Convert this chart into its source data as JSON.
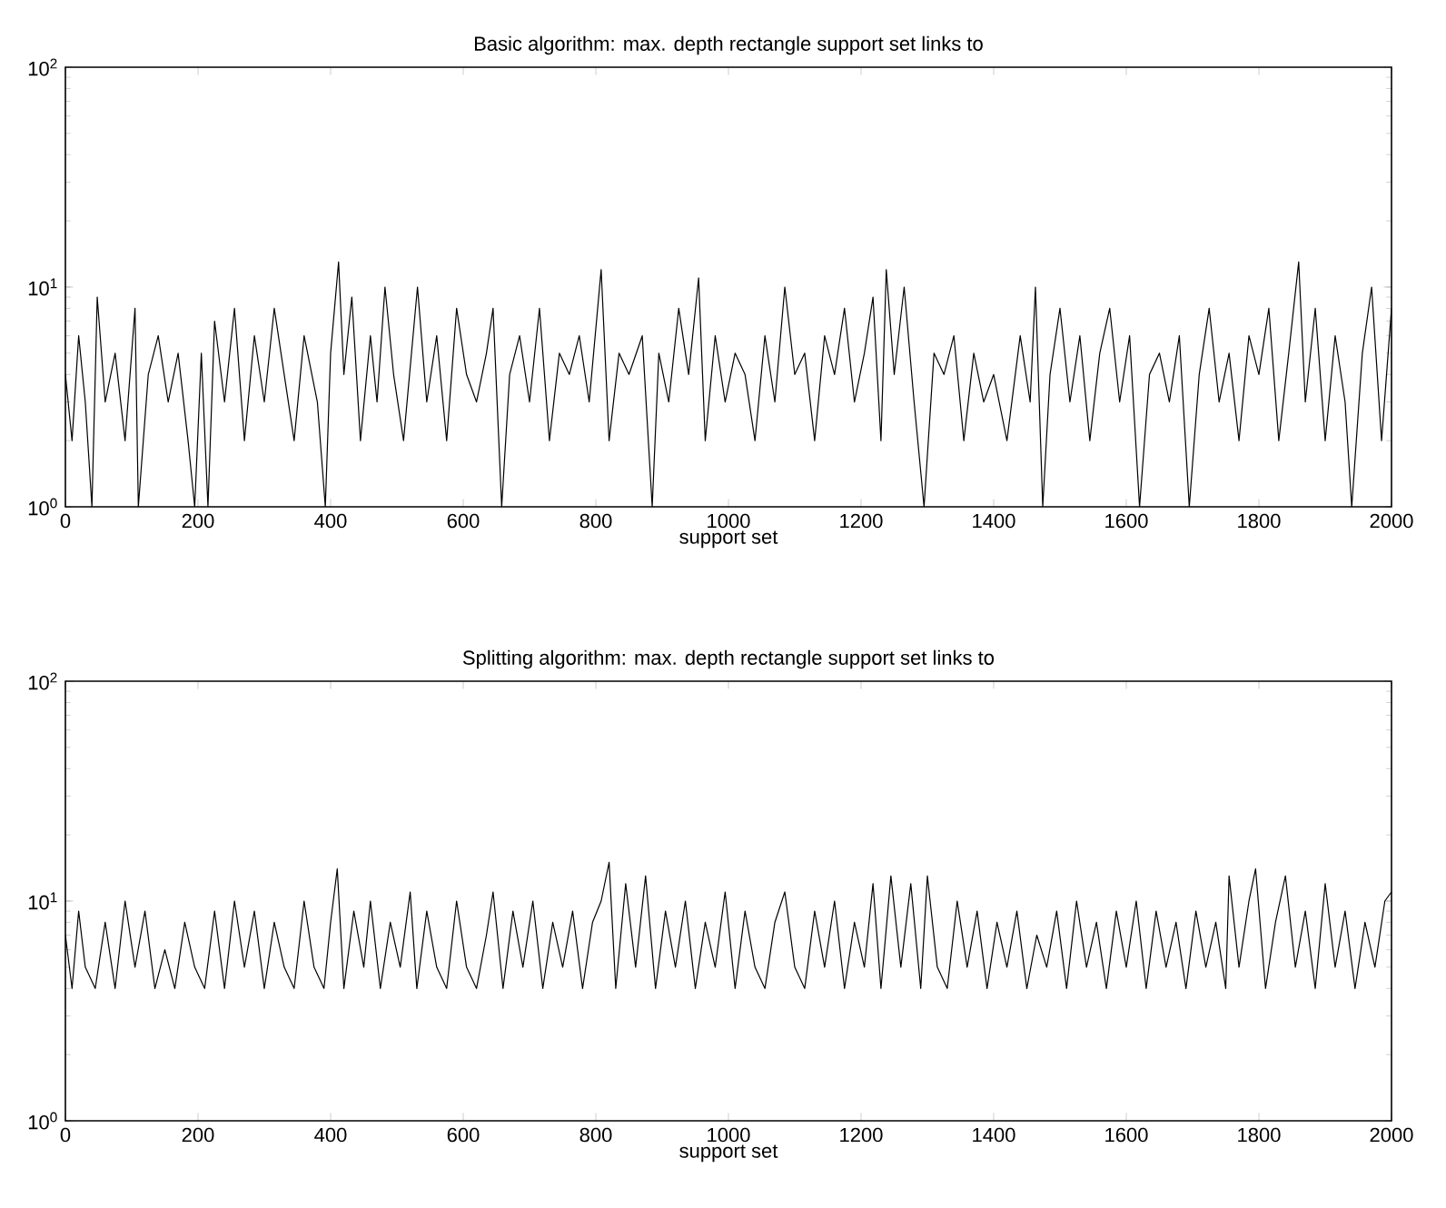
{
  "chart_data": [
    {
      "type": "line",
      "title": "Basic algorithm: max. depth rectangle support set links to",
      "xlabel": "support set",
      "log": "y",
      "xlim": [
        0,
        2000
      ],
      "xticks": [
        0,
        200,
        400,
        600,
        800,
        1000,
        1200,
        1400,
        1600,
        1800,
        2000
      ],
      "ylim": [
        1,
        100
      ],
      "yticks": [
        {
          "value": 1,
          "label": "10$^{0}$"
        },
        {
          "value": 10,
          "label": "10$^{1}$"
        },
        {
          "value": 100,
          "label": "10$^{2}$"
        }
      ],
      "x": [
        0,
        10,
        20,
        30,
        40,
        48,
        60,
        75,
        90,
        105,
        110,
        125,
        140,
        155,
        170,
        185,
        195,
        205,
        215,
        225,
        240,
        255,
        270,
        285,
        300,
        315,
        330,
        345,
        360,
        380,
        392,
        400,
        412,
        420,
        432,
        445,
        460,
        470,
        482,
        495,
        510,
        531,
        545,
        560,
        575,
        590,
        605,
        620,
        635,
        645,
        658,
        670,
        685,
        700,
        715,
        730,
        745,
        760,
        775,
        790,
        808,
        820,
        835,
        850,
        870,
        885,
        895,
        910,
        925,
        940,
        955,
        965,
        980,
        995,
        1010,
        1025,
        1040,
        1055,
        1070,
        1085,
        1100,
        1115,
        1130,
        1145,
        1160,
        1175,
        1190,
        1205,
        1218,
        1230,
        1238,
        1250,
        1265,
        1280,
        1295,
        1310,
        1325,
        1340,
        1355,
        1370,
        1385,
        1400,
        1420,
        1440,
        1455,
        1463,
        1474,
        1485,
        1500,
        1515,
        1530,
        1545,
        1560,
        1575,
        1590,
        1605,
        1620,
        1635,
        1650,
        1665,
        1680,
        1695,
        1710,
        1725,
        1740,
        1755,
        1770,
        1785,
        1800,
        1815,
        1830,
        1845,
        1860,
        1870,
        1885,
        1900,
        1915,
        1930,
        1940,
        1956,
        1970,
        1985,
        2000
      ],
      "values": [
        4,
        2,
        6,
        3,
        1,
        9,
        3,
        5,
        2,
        8,
        1,
        4,
        6,
        3,
        5,
        2,
        1,
        5,
        1,
        7,
        3,
        8,
        2,
        6,
        3,
        8,
        4,
        2,
        6,
        3,
        1,
        5,
        13,
        4,
        9,
        2,
        6,
        3,
        10,
        4,
        2,
        10,
        3,
        6,
        2,
        8,
        4,
        3,
        5,
        8,
        1,
        4,
        6,
        3,
        8,
        2,
        5,
        4,
        6,
        3,
        12,
        2,
        5,
        4,
        6,
        1,
        5,
        3,
        8,
        4,
        11,
        2,
        6,
        3,
        5,
        4,
        2,
        6,
        3,
        10,
        4,
        5,
        2,
        6,
        4,
        8,
        3,
        5,
        9,
        2,
        12,
        4,
        10,
        3,
        1,
        5,
        4,
        6,
        2,
        5,
        3,
        4,
        2,
        6,
        3,
        10,
        1,
        4,
        8,
        3,
        6,
        2,
        5,
        8,
        3,
        6,
        1,
        4,
        5,
        3,
        6,
        1,
        4,
        8,
        3,
        5,
        2,
        6,
        4,
        8,
        2,
        5,
        13,
        3,
        8,
        2,
        6,
        3,
        1,
        5,
        10,
        2,
        8
      ],
      "color": "#000000"
    },
    {
      "type": "line",
      "title": "Splitting algorithm: max. depth rectangle support set links to",
      "xlabel": "support set",
      "log": "y",
      "xlim": [
        0,
        2000
      ],
      "xticks": [
        0,
        200,
        400,
        600,
        800,
        1000,
        1200,
        1400,
        1600,
        1800,
        2000
      ],
      "ylim": [
        1,
        100
      ],
      "yticks": [
        {
          "value": 1,
          "label": "10$^{0}$"
        },
        {
          "value": 10,
          "label": "10$^{1}$"
        },
        {
          "value": 100,
          "label": "10$^{2}$"
        }
      ],
      "x": [
        0,
        10,
        20,
        30,
        45,
        60,
        75,
        90,
        105,
        120,
        135,
        150,
        165,
        180,
        195,
        210,
        225,
        240,
        255,
        270,
        285,
        300,
        315,
        330,
        345,
        360,
        375,
        390,
        400,
        410,
        420,
        435,
        450,
        460,
        475,
        490,
        505,
        520,
        530,
        545,
        560,
        575,
        590,
        605,
        620,
        635,
        645,
        660,
        675,
        690,
        705,
        720,
        735,
        750,
        765,
        780,
        795,
        808,
        820,
        830,
        845,
        860,
        875,
        890,
        905,
        920,
        935,
        950,
        965,
        980,
        995,
        1010,
        1025,
        1040,
        1055,
        1070,
        1085,
        1100,
        1115,
        1130,
        1145,
        1160,
        1175,
        1190,
        1205,
        1218,
        1230,
        1245,
        1260,
        1275,
        1290,
        1300,
        1315,
        1330,
        1345,
        1360,
        1375,
        1390,
        1405,
        1420,
        1435,
        1450,
        1465,
        1480,
        1495,
        1510,
        1525,
        1540,
        1555,
        1570,
        1585,
        1600,
        1615,
        1630,
        1645,
        1660,
        1675,
        1690,
        1705,
        1720,
        1735,
        1750,
        1755,
        1770,
        1785,
        1795,
        1810,
        1825,
        1840,
        1855,
        1870,
        1885,
        1900,
        1915,
        1930,
        1945,
        1960,
        1975,
        1990,
        2000
      ],
      "values": [
        7,
        4,
        9,
        5,
        4,
        8,
        4,
        10,
        5,
        9,
        4,
        6,
        4,
        8,
        5,
        4,
        9,
        4,
        10,
        5,
        9,
        4,
        8,
        5,
        4,
        10,
        5,
        4,
        8,
        14,
        4,
        9,
        5,
        10,
        4,
        8,
        5,
        11,
        4,
        9,
        5,
        4,
        10,
        5,
        4,
        7,
        11,
        4,
        9,
        5,
        10,
        4,
        8,
        5,
        9,
        4,
        8,
        10,
        15,
        4,
        12,
        5,
        13,
        4,
        9,
        5,
        10,
        4,
        8,
        5,
        11,
        4,
        9,
        5,
        4,
        8,
        11,
        5,
        4,
        9,
        5,
        10,
        4,
        8,
        5,
        12,
        4,
        13,
        5,
        12,
        4,
        13,
        5,
        4,
        10,
        5,
        9,
        4,
        8,
        5,
        9,
        4,
        7,
        5,
        9,
        4,
        10,
        5,
        8,
        4,
        9,
        5,
        10,
        4,
        9,
        5,
        8,
        4,
        9,
        5,
        8,
        4,
        13,
        5,
        10,
        14,
        4,
        8,
        13,
        5,
        9,
        4,
        12,
        5,
        9,
        4,
        8,
        5,
        10,
        11
      ],
      "color": "#000000"
    }
  ]
}
